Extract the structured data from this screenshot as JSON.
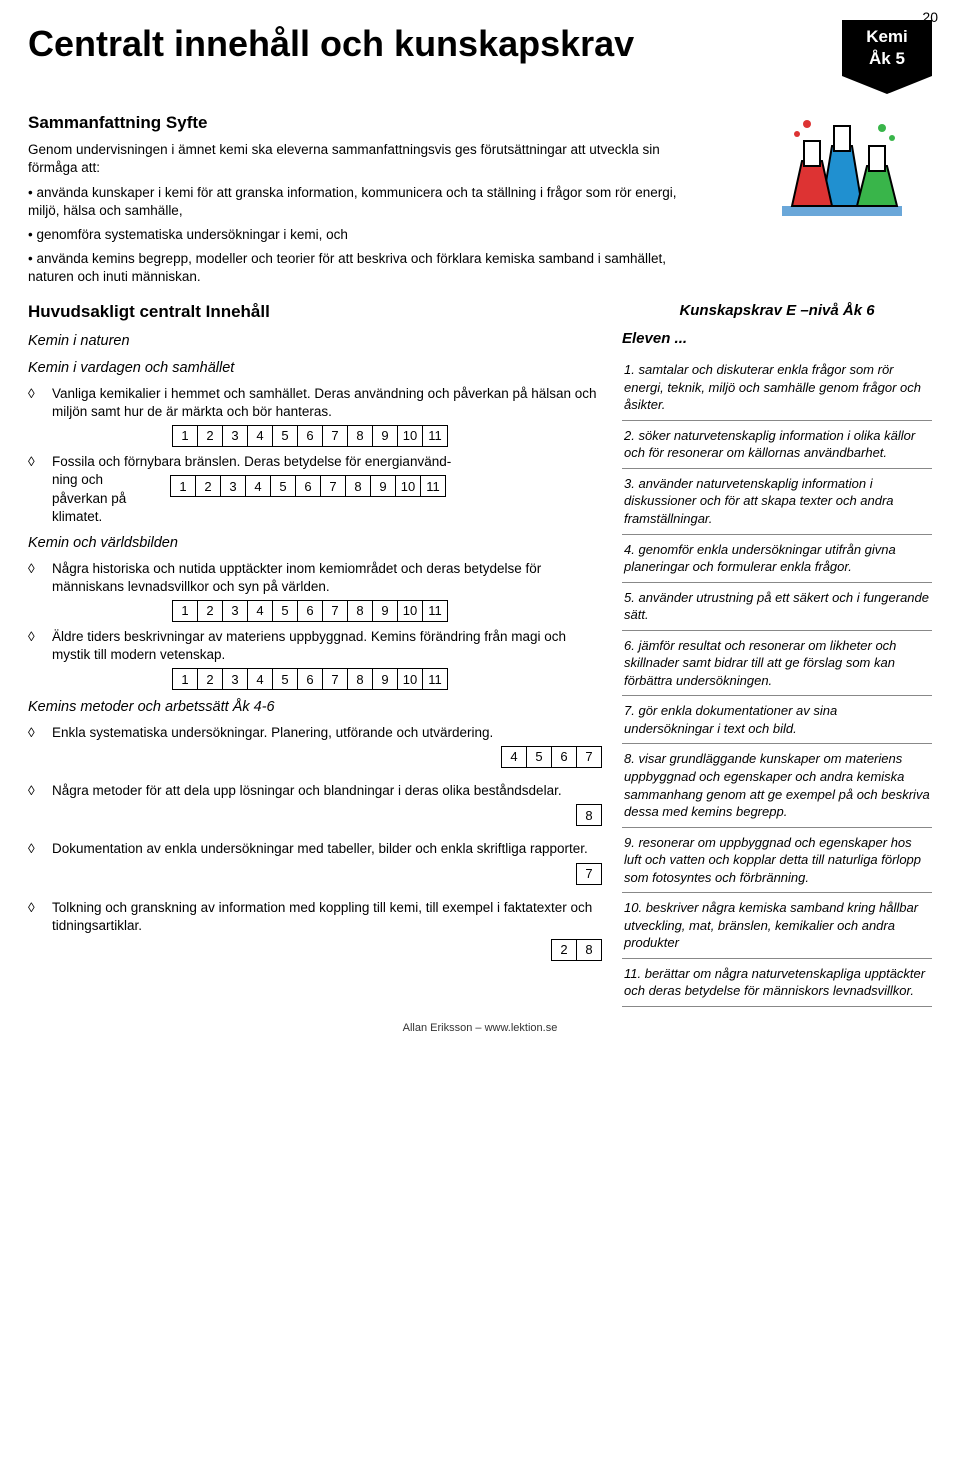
{
  "page_number": "20",
  "title": "Centralt innehåll och kunskapskrav",
  "tag": {
    "line1": "Kemi",
    "line2": "Åk 5"
  },
  "summary": {
    "heading": "Sammanfattning Syfte",
    "intro": "Genom undervisningen i ämnet kemi ska eleverna sammanfattningsvis ges förutsättningar att utveckla sin förmåga att:",
    "bullets": [
      "• använda kunskaper i kemi för att granska information, kommunicera och ta ställning i frågor som rör energi, miljö, hälsa och samhälle,",
      "• genomföra systematiska undersökningar i kemi, och",
      "• använda kemins begrepp, modeller och teorier för att beskriva och förklara kemiska  samband i samhället, naturen och inuti människan."
    ]
  },
  "left": {
    "heading": "Huvudsakligt centralt Innehåll",
    "sec1_title": "Kemin i naturen",
    "sec2_title": "Kemin i vardagen och samhället",
    "item1_text": "Vanliga kemikalier i hemmet och samhället. Deras användning och påverkan på hälsan och miljön samt hur de är märkta och bör hanteras.",
    "item1_nums": [
      "1",
      "2",
      "3",
      "4",
      "5",
      "6",
      "7",
      "8",
      "9",
      "10",
      "11"
    ],
    "item2_pre": "Fossila och förnybara bränslen. Deras betydelse för energianvänd-",
    "item2_mid": "ning och påverkan på klimatet.",
    "item2_nums": [
      "1",
      "2",
      "3",
      "4",
      "5",
      "6",
      "7",
      "8",
      "9",
      "10",
      "11"
    ],
    "sec3_title": "Kemin och världsbilden",
    "item3_text": "Några historiska och nutida upptäckter inom kemiområdet och deras betydelse för människans levnadsvillkor och syn på världen.",
    "item3_nums": [
      "1",
      "2",
      "3",
      "4",
      "5",
      "6",
      "7",
      "8",
      "9",
      "10",
      "11"
    ],
    "item4_text": "Äldre tiders beskrivningar av materiens uppbyggnad. Kemins förändring från magi och mystik till modern vetenskap.",
    "item4_nums": [
      "1",
      "2",
      "3",
      "4",
      "5",
      "6",
      "7",
      "8",
      "9",
      "10",
      "11"
    ],
    "sec4_title": "Kemins metoder och arbetssätt Åk 4-6",
    "item5_text": "Enkla systematiska undersökningar. Planering, utförande och utvärdering.",
    "item5_nums": [
      "4",
      "5",
      "6",
      "7"
    ],
    "item6_text": "Några metoder för att dela upp lösningar och blandningar i deras olika beståndsdelar.",
    "item6_nums": [
      "8"
    ],
    "item7_text": "Dokumentation av enkla undersökningar med tabeller, bilder och enkla skriftliga rapporter.",
    "item7_nums": [
      "7"
    ],
    "item8_text": "Tolkning och granskning av information med koppling till kemi, till exempel i faktatexter och tidningsartiklar.",
    "item8_nums": [
      "2",
      "8"
    ]
  },
  "right": {
    "title": "Kunskapskrav E –nivå Åk 6",
    "eleven": "Eleven ...",
    "items": [
      {
        "n": "1.",
        "t": "samtalar och diskuterar enkla frågor som rör energi, teknik, miljö och samhälle genom frågor och åsikter."
      },
      {
        "n": "2.",
        "t": "söker naturvetenskaplig information i olika källor och för resonerar om källornas användbarhet."
      },
      {
        "n": "3.",
        "t": "använder naturvetenskaplig information i diskussioner och för att skapa texter och andra framställningar."
      },
      {
        "n": "4.",
        "t": "genomför enkla undersökningar utifrån givna planeringar och  formulerar enkla frågor."
      },
      {
        "n": "5.",
        "t": "använder utrustning på ett säkert och i fungerande sätt."
      },
      {
        "n": "6.",
        "t": "jämför resultat och resonerar om likheter och skillnader samt bidrar till att ge förslag som kan förbättra undersökningen."
      },
      {
        "n": "7.",
        "t": "gör enkla dokumentationer av sina undersökningar i text och bild."
      },
      {
        "n": "8.",
        "t": "visar grundläggande kunskaper om materiens uppbyggnad och egenskaper och andra kemiska sammanhang genom att ge exempel på och beskriva dessa med kemins begrepp."
      },
      {
        "n": "9.",
        "t": "resonerar om uppbyggnad och egenskaper hos luft och vatten och kopplar detta till naturliga förlopp som fotosyntes och förbränning."
      },
      {
        "n": "10.",
        "t": "beskriver några kemiska samband kring hållbar utveckling, mat, bränslen, kemikalier och andra produkter"
      },
      {
        "n": "11.",
        "t": "berättar om några naturvetenskapliga upptäckter och deras betydelse för människors levnadsvillkor."
      }
    ]
  },
  "footer": "Allan Eriksson – www.lektion.se",
  "colors": {
    "tag_bg": "#000000",
    "tag_fg": "#ffffff",
    "text": "#000000"
  }
}
